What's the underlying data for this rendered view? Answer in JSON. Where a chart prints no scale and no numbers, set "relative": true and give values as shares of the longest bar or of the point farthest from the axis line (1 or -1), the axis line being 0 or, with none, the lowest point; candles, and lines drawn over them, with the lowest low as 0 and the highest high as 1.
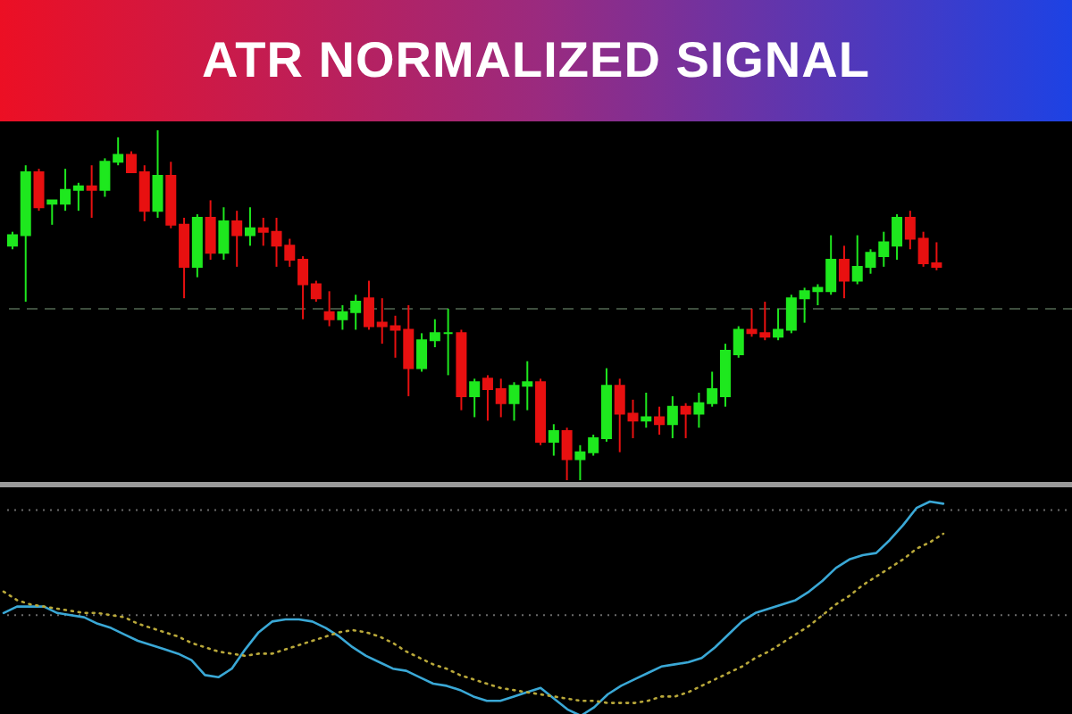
{
  "chart_data": [
    {
      "type": "candlestick",
      "title": "ATR NORMALIZED SIGNAL",
      "relative": true,
      "tick_labels": false,
      "categories": [
        null,
        null,
        null,
        null,
        null,
        null,
        null,
        null,
        null,
        null,
        null,
        null,
        null,
        null,
        null,
        null,
        null,
        null,
        null,
        null,
        null,
        null,
        null,
        null,
        null,
        null,
        null,
        null,
        null,
        null,
        null,
        null,
        null,
        null,
        null,
        null,
        null,
        null,
        null,
        null,
        null,
        null,
        null,
        null,
        null,
        null,
        null,
        null,
        null,
        null,
        null,
        null,
        null,
        null,
        null,
        null,
        null,
        null,
        null,
        null,
        null,
        null,
        null,
        null,
        null,
        null,
        null,
        null,
        null,
        null,
        null
      ],
      "ohlc": [
        [
          0.67,
          0.71,
          0.66,
          0.7
        ],
        [
          0.7,
          0.9,
          0.51,
          0.88
        ],
        [
          0.88,
          0.89,
          0.77,
          0.78
        ],
        [
          0.79,
          0.8,
          0.73,
          0.8
        ],
        [
          0.79,
          0.89,
          0.77,
          0.83
        ],
        [
          0.83,
          0.85,
          0.77,
          0.84
        ],
        [
          0.84,
          0.9,
          0.75,
          0.83
        ],
        [
          0.83,
          0.92,
          0.81,
          0.91
        ],
        [
          0.91,
          0.98,
          0.9,
          0.93
        ],
        [
          0.93,
          0.94,
          0.88,
          0.88
        ],
        [
          0.88,
          0.9,
          0.74,
          0.77
        ],
        [
          0.77,
          1,
          0.75,
          0.87
        ],
        [
          0.87,
          0.91,
          0.72,
          0.73
        ],
        [
          0.73,
          0.75,
          0.52,
          0.61
        ],
        [
          0.61,
          0.76,
          0.58,
          0.75
        ],
        [
          0.75,
          0.8,
          0.63,
          0.65
        ],
        [
          0.65,
          0.78,
          0.63,
          0.74
        ],
        [
          0.74,
          0.77,
          0.61,
          0.7
        ],
        [
          0.7,
          0.78,
          0.67,
          0.72
        ],
        [
          0.72,
          0.75,
          0.67,
          0.71
        ],
        [
          0.71,
          0.75,
          0.61,
          0.67
        ],
        [
          0.67,
          0.69,
          0.61,
          0.63
        ],
        [
          0.63,
          0.64,
          0.46,
          0.56
        ],
        [
          0.56,
          0.57,
          0.51,
          0.52
        ],
        [
          0.48,
          0.54,
          0.44,
          0.46
        ],
        [
          0.46,
          0.5,
          0.43,
          0.48
        ],
        [
          0.48,
          0.53,
          0.43,
          0.51
        ],
        [
          0.52,
          0.57,
          0.43,
          0.44
        ],
        [
          0.45,
          0.52,
          0.39,
          0.44
        ],
        [
          0.44,
          0.47,
          0.35,
          0.43
        ],
        [
          0.43,
          0.5,
          0.24,
          0.32
        ],
        [
          0.32,
          0.42,
          0.31,
          0.4
        ],
        [
          0.4,
          0.46,
          0.38,
          0.42
        ],
        [
          0.42,
          0.49,
          0.3,
          0.42
        ],
        [
          0.42,
          0.43,
          0.2,
          0.24
        ],
        [
          0.24,
          0.29,
          0.18,
          0.28
        ],
        [
          0.29,
          0.3,
          0.17,
          0.26
        ],
        [
          0.26,
          0.29,
          0.18,
          0.22
        ],
        [
          0.22,
          0.28,
          0.17,
          0.27
        ],
        [
          0.27,
          0.34,
          0.2,
          0.28
        ],
        [
          0.28,
          0.29,
          0.1,
          0.11
        ],
        [
          0.11,
          0.16,
          0.07,
          0.14
        ],
        [
          0.14,
          0.15,
          0,
          0.06
        ],
        [
          0.06,
          0.1,
          0,
          0.08
        ],
        [
          0.08,
          0.13,
          0.07,
          0.12
        ],
        [
          0.12,
          0.32,
          0.11,
          0.27
        ],
        [
          0.27,
          0.29,
          0.08,
          0.19
        ],
        [
          0.19,
          0.23,
          0.12,
          0.17
        ],
        [
          0.17,
          0.25,
          0.15,
          0.18
        ],
        [
          0.18,
          0.21,
          0.13,
          0.16
        ],
        [
          0.16,
          0.24,
          0.12,
          0.21
        ],
        [
          0.21,
          0.22,
          0.12,
          0.19
        ],
        [
          0.19,
          0.25,
          0.15,
          0.22
        ],
        [
          0.22,
          0.31,
          0.21,
          0.26
        ],
        [
          0.24,
          0.39,
          0.21,
          0.37
        ],
        [
          0.36,
          0.44,
          0.35,
          0.43
        ],
        [
          0.43,
          0.49,
          0.41,
          0.42
        ],
        [
          0.42,
          0.51,
          0.4,
          0.41
        ],
        [
          0.41,
          0.49,
          0.4,
          0.43
        ],
        [
          0.43,
          0.53,
          0.42,
          0.52
        ],
        [
          0.52,
          0.55,
          0.45,
          0.54
        ],
        [
          0.54,
          0.56,
          0.5,
          0.55
        ],
        [
          0.54,
          0.7,
          0.53,
          0.63
        ],
        [
          0.63,
          0.67,
          0.52,
          0.57
        ],
        [
          0.57,
          0.7,
          0.56,
          0.61
        ],
        [
          0.61,
          0.66,
          0.59,
          0.65
        ],
        [
          0.64,
          0.71,
          0.61,
          0.68
        ],
        [
          0.67,
          0.76,
          0.63,
          0.75
        ],
        [
          0.75,
          0.77,
          0.66,
          0.69
        ],
        [
          0.69,
          0.71,
          0.61,
          0.62
        ],
        [
          0.62,
          0.68,
          0.6,
          0.61
        ]
      ],
      "colors": [
        "#1ee81e",
        "#1ee81e",
        "#e81010",
        "#1ee81e",
        "#1ee81e",
        "#1ee81e",
        "#e81010",
        "#1ee81e",
        "#1ee81e",
        "#e81010",
        "#e81010",
        "#1ee81e",
        "#e81010",
        "#e81010",
        "#1ee81e",
        "#e81010",
        "#1ee81e",
        "#e81010",
        "#1ee81e",
        "#e81010",
        "#e81010",
        "#e81010",
        "#e81010",
        "#e81010",
        "#e81010",
        "#1ee81e",
        "#1ee81e",
        "#e81010",
        "#e81010",
        "#e81010",
        "#e81010",
        "#1ee81e",
        "#1ee81e",
        "#1ee81e",
        "#e81010",
        "#1ee81e",
        "#e81010",
        "#e81010",
        "#1ee81e",
        "#1ee81e",
        "#e81010",
        "#1ee81e",
        "#e81010",
        "#1ee81e",
        "#1ee81e",
        "#1ee81e",
        "#e81010",
        "#e81010",
        "#1ee81e",
        "#e81010",
        "#1ee81e",
        "#e81010",
        "#1ee81e",
        "#1ee81e",
        "#1ee81e",
        "#1ee81e",
        "#e81010",
        "#e81010",
        "#1ee81e",
        "#1ee81e",
        "#1ee81e",
        "#1ee81e",
        "#1ee81e",
        "#e81010",
        "#1ee81e",
        "#1ee81e",
        "#1ee81e",
        "#1ee81e",
        "#e81010",
        "#e81010",
        "#e81010"
      ],
      "ref_lines": [
        {
          "axis": "y",
          "value": 0.49,
          "color": "#3e4e3e",
          "line_style": "dashed"
        }
      ]
    },
    {
      "type": "line",
      "relative": true,
      "tick_labels": false,
      "categories": [
        null,
        null,
        null,
        null,
        null,
        null,
        null,
        null,
        null,
        null,
        null,
        null,
        null,
        null,
        null,
        null,
        null,
        null,
        null,
        null,
        null,
        null,
        null,
        null,
        null,
        null,
        null,
        null,
        null,
        null,
        null,
        null,
        null,
        null,
        null,
        null,
        null,
        null,
        null,
        null,
        null,
        null,
        null,
        null,
        null,
        null,
        null,
        null,
        null,
        null,
        null,
        null,
        null,
        null,
        null,
        null,
        null,
        null,
        null,
        null,
        null,
        null,
        null,
        null,
        null,
        null,
        null,
        null,
        null,
        null,
        null
      ],
      "series": [
        {
          "color": "#3aa8d6",
          "line_style": "solid",
          "values": [
            0.48,
            0.51,
            0.51,
            0.51,
            0.48,
            0.47,
            0.46,
            0.43,
            0.41,
            0.38,
            0.35,
            0.33,
            0.31,
            0.29,
            0.26,
            0.19,
            0.18,
            0.22,
            0.31,
            0.39,
            0.44,
            0.45,
            0.45,
            0.44,
            0.41,
            0.37,
            0.32,
            0.28,
            0.25,
            0.22,
            0.21,
            0.18,
            0.15,
            0.14,
            0.12,
            0.09,
            0.07,
            0.07,
            0.09,
            0.11,
            0.13,
            0.08,
            0.03,
            0,
            0.04,
            0.1,
            0.14,
            0.17,
            0.2,
            0.23,
            0.24,
            0.25,
            0.27,
            0.32,
            0.38,
            0.44,
            0.48,
            0.5,
            0.52,
            0.54,
            0.58,
            0.63,
            0.69,
            0.73,
            0.75,
            0.76,
            0.82,
            0.89,
            0.97,
            1,
            0.99
          ]
        },
        {
          "color": "#b9a83a",
          "line_style": "dotted",
          "values": [
            0.58,
            0.54,
            0.52,
            0.51,
            0.5,
            0.49,
            0.48,
            0.48,
            0.47,
            0.46,
            0.43,
            0.41,
            0.39,
            0.37,
            0.34,
            0.32,
            0.3,
            0.29,
            0.28,
            0.29,
            0.29,
            0.31,
            0.33,
            0.35,
            0.37,
            0.39,
            0.4,
            0.39,
            0.37,
            0.34,
            0.3,
            0.27,
            0.24,
            0.22,
            0.19,
            0.17,
            0.15,
            0.13,
            0.12,
            0.11,
            0.1,
            0.09,
            0.08,
            0.07,
            0.07,
            0.06,
            0.06,
            0.06,
            0.07,
            0.09,
            0.09,
            0.11,
            0.14,
            0.17,
            0.2,
            0.23,
            0.27,
            0.3,
            0.34,
            0.38,
            0.42,
            0.47,
            0.52,
            0.56,
            0.61,
            0.65,
            0.69,
            0.73,
            0.78,
            0.81,
            0.85
          ]
        }
      ],
      "ref_lines": [
        {
          "axis": "y",
          "value": 0.96,
          "color": "#6a6a6a",
          "line_style": "dotted"
        },
        {
          "axis": "y",
          "value": 0.47,
          "color": "#6a6a6a",
          "line_style": "dotted"
        }
      ]
    }
  ]
}
